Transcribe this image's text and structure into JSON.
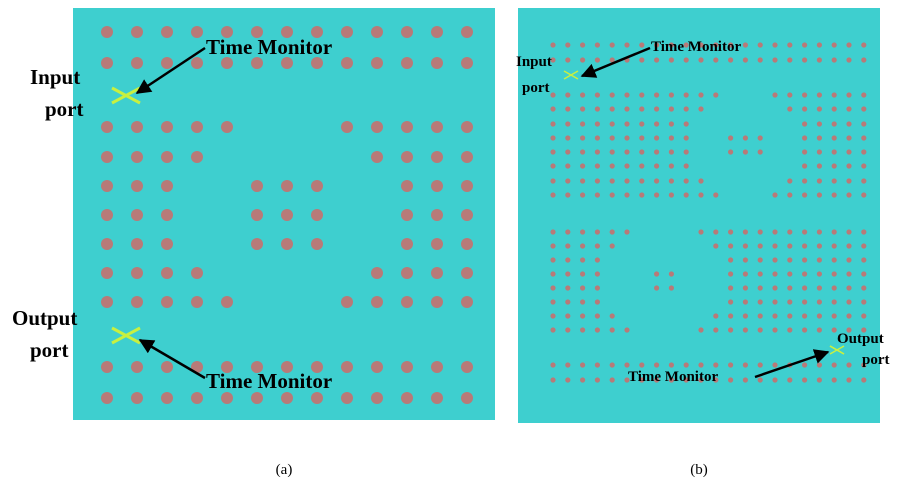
{
  "panels": [
    {
      "caption": "(a)",
      "monitor_top": "Time Monitor",
      "monitor_bottom": "Time Monitor",
      "input": [
        "Input",
        "port"
      ],
      "output": [
        "Output",
        "port"
      ]
    },
    {
      "caption": "(b)",
      "monitor_top": "Time Monitor",
      "monitor_bottom": "Time Monitor",
      "input": [
        "Input",
        "port"
      ],
      "output": [
        "Output",
        "port"
      ]
    }
  ]
}
